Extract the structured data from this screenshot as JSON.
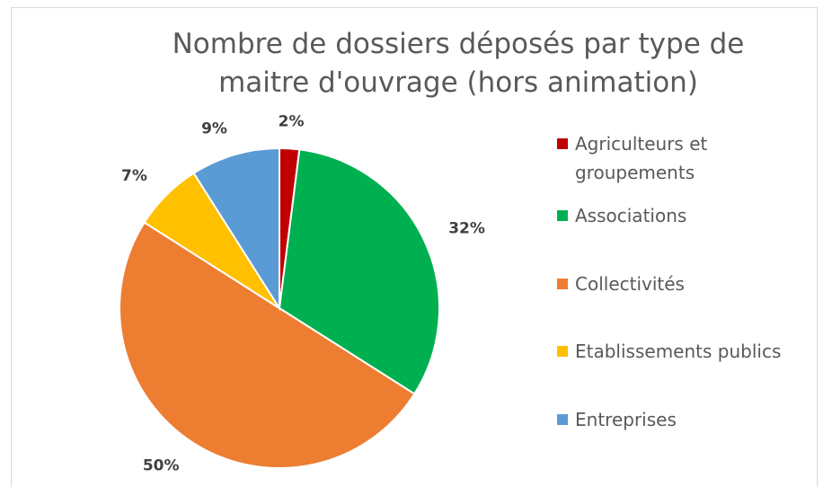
{
  "chart_data": {
    "type": "pie",
    "title": "Nombre de dossiers déposés par type de maitre d'ouvrage (hors animation)",
    "categories": [
      "Agriculteurs et groupements",
      "Associations",
      "Collectivités",
      "Etablissements publics",
      "Entreprises"
    ],
    "values": [
      2,
      32,
      50,
      7,
      9
    ],
    "value_labels": [
      "2%",
      "32%",
      "50%",
      "7%",
      "9%"
    ],
    "colors": [
      "#c00000",
      "#00b050",
      "#ed7d31",
      "#ffc000",
      "#5b9bd5"
    ],
    "legend": "right"
  }
}
